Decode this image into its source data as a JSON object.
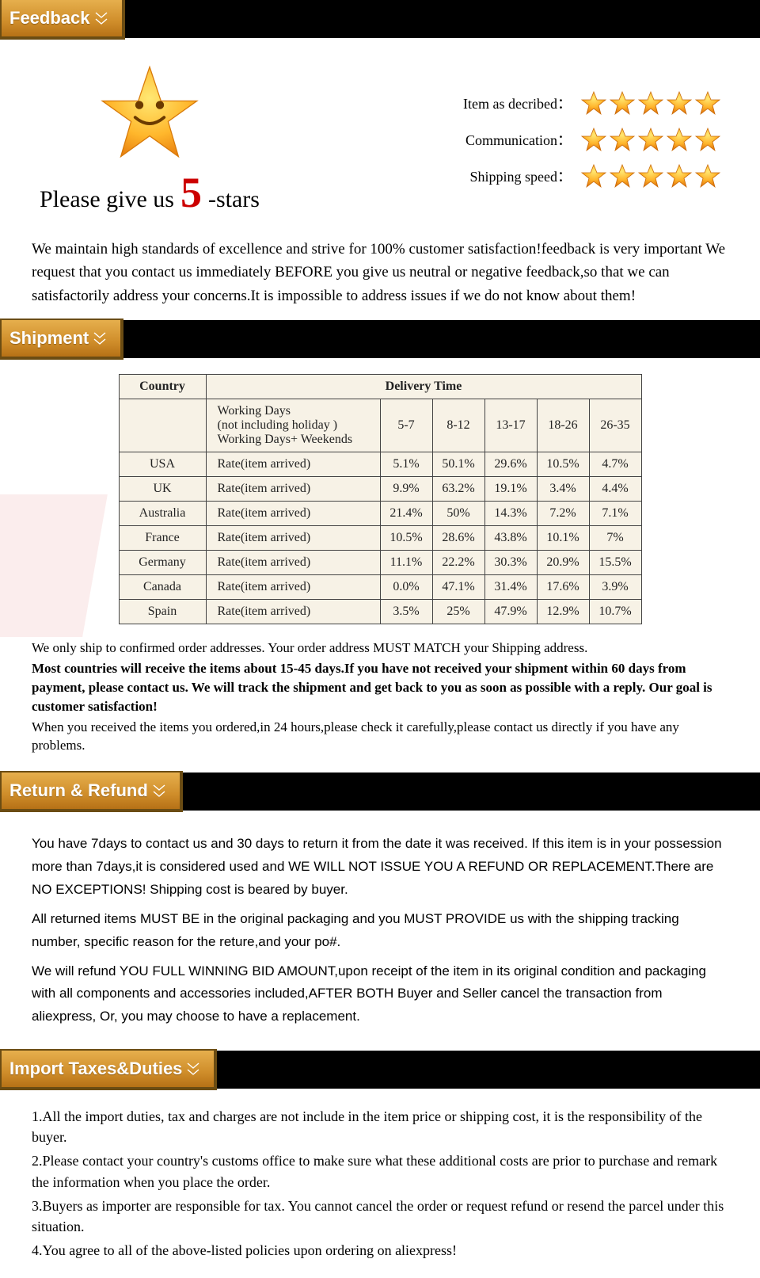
{
  "colors": {
    "tab_gradient_top": "#e6af4d",
    "tab_gradient_mid": "#cf8d2a",
    "tab_gradient_bot": "#b67116",
    "tab_border": "#6b4c13",
    "banner_bg": "#000000",
    "star_fill_top": "#ffd84a",
    "star_fill_bot": "#f08a12",
    "five_color": "#c00000",
    "table_bg": "#f7f2e6",
    "table_border": "#444444",
    "watermark_gray": "rgba(120,120,120,0.10)"
  },
  "feedback": {
    "tab": "Feedback",
    "please_prefix": "Please give us",
    "please_number": "5",
    "please_suffix": "-stars",
    "ratings": [
      {
        "label": "Item as decribed："
      },
      {
        "label": "Communication："
      },
      {
        "label": "Shipping speed："
      }
    ],
    "stars_per_row": 5,
    "body": "We maintain high standards of excellence and strive for 100% customer satisfaction!feedback is very important We request that you contact us immediately BEFORE you give us neutral or negative feedback,so that we can satisfactorily address your concerns.It is impossible to address issues if we do not know about them!"
  },
  "shipment": {
    "tab": "Shipment",
    "watermark": "MOTO",
    "headers": {
      "country": "Country",
      "delivery": "Delivery Time"
    },
    "subheader_label": "Working Days\n(not including holiday )\nWorking Days+ Weekends",
    "ranges": [
      "5-7",
      "8-12",
      "13-17",
      "18-26",
      "26-35"
    ],
    "rate_label": "Rate(item arrived)",
    "rows": [
      {
        "country": "USA",
        "rates": [
          "5.1%",
          "50.1%",
          "29.6%",
          "10.5%",
          "4.7%"
        ]
      },
      {
        "country": "UK",
        "rates": [
          "9.9%",
          "63.2%",
          "19.1%",
          "3.4%",
          "4.4%"
        ]
      },
      {
        "country": "Australia",
        "rates": [
          "21.4%",
          "50%",
          "14.3%",
          "7.2%",
          "7.1%"
        ]
      },
      {
        "country": "France",
        "rates": [
          "10.5%",
          "28.6%",
          "43.8%",
          "10.1%",
          "7%"
        ]
      },
      {
        "country": "Germany",
        "rates": [
          "11.1%",
          "22.2%",
          "30.3%",
          "20.9%",
          "15.5%"
        ]
      },
      {
        "country": "Canada",
        "rates": [
          "0.0%",
          "47.1%",
          "31.4%",
          "17.6%",
          "3.9%"
        ]
      },
      {
        "country": "Spain",
        "rates": [
          "3.5%",
          "25%",
          "47.9%",
          "12.9%",
          "10.7%"
        ]
      }
    ],
    "notes": [
      "We only ship to confirmed order addresses. Your order address MUST MATCH your Shipping address.",
      "Most countries will receive the items about 15-45 days.If you have not received your shipment within 60 days from payment, please contact us. We will track the shipment and get back to you as soon as possible with a reply. Our goal is customer satisfaction!",
      "When you received the items you ordered,in 24 hours,please check it carefully,please contact us directly if you have any problems."
    ]
  },
  "return_refund": {
    "tab": "Return & Refund",
    "paragraphs": [
      "You have 7days to contact us and 30 days to return it from the date it was received. If this item is in your possession more than 7days,it is considered used and WE WILL NOT ISSUE YOU A REFUND OR REPLACEMENT.There are NO EXCEPTIONS! Shipping cost is beared by buyer.",
      "All returned items MUST BE in the original packaging and you MUST PROVIDE us with the shipping tracking number, specific reason for the reture,and your po#.",
      "We will refund YOU FULL WINNING BID AMOUNT,upon receipt of the item in its original condition and packaging with all components and accessories included,AFTER BOTH Buyer and Seller cancel the transaction from aliexpress, Or, you may choose to have a replacement."
    ]
  },
  "taxes": {
    "tab": "Import Taxes&Duties",
    "items": [
      "1.All the import duties, tax and charges are not include in the item price or shipping cost, it is the responsibility of the buyer.",
      "2.Please contact your country's customs office to make sure what these additional costs are prior to purchase and remark the information when you place the order.",
      "3.Buyers as importer are responsible for tax. You cannot cancel the order or request refund or resend the parcel under this situation.",
      "4.You agree to all of the above-listed policies upon ordering on aliexpress!"
    ]
  }
}
